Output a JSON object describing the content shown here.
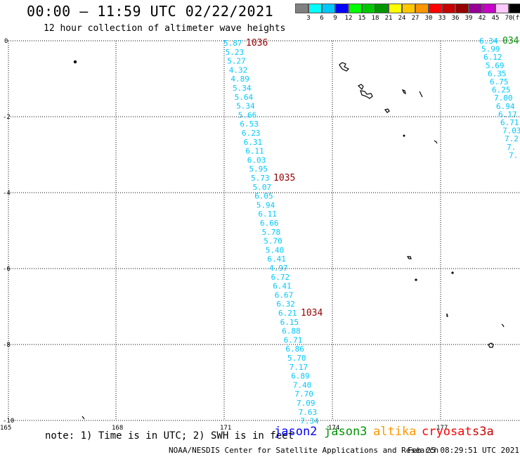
{
  "header": {
    "title": "00:00 – 11:59 UTC 02/22/2021",
    "subtitle": "12 hour collection of altimeter wave heights"
  },
  "legend": {
    "unit": "(ft)",
    "colors": [
      "#808080",
      "#00ffff",
      "#00c8ff",
      "#0000ff",
      "#00ff00",
      "#00c800",
      "#009600",
      "#ffff00",
      "#ffc800",
      "#ff9600",
      "#ff0000",
      "#c80000",
      "#960000",
      "#960096",
      "#c800c8",
      "#ffc8ff",
      "#000000"
    ],
    "labels": [
      "3",
      "6",
      "9",
      "12",
      "15",
      "18",
      "21",
      "24",
      "27",
      "30",
      "33",
      "36",
      "39",
      "42",
      "45",
      "70"
    ]
  },
  "map": {
    "x_ticks": [
      "165",
      "168",
      "171",
      "174",
      "177"
    ],
    "y_ticks": [
      "0",
      "-2",
      "-4",
      "-6",
      "-8",
      "-10"
    ],
    "track1": {
      "swh_ft": [
        "5.87",
        "5.23",
        "5.27",
        "4.32",
        "4.89",
        "5.34",
        "5.64",
        "5.34",
        "5.66",
        "6.53",
        "6.23",
        "6.31",
        "6.11",
        "6.03",
        "5.95",
        "5.73",
        "5.07",
        "6.05",
        "5.94",
        "6.11",
        "6.66",
        "5.78",
        "5.70",
        "5.40",
        "6.41",
        "4.97",
        "6.72",
        "6.41",
        "6.67",
        "6.32",
        "6.21",
        "6.15",
        "6.88",
        "6.71",
        "6.86",
        "5.70",
        "7.17",
        "6.89",
        "7.40",
        "7.70",
        "7.09",
        "7.63",
        "7.34"
      ],
      "time_labels": [
        {
          "text": "1036",
          "at_index": 0
        },
        {
          "text": "1035",
          "at_index": 15
        },
        {
          "text": "1034",
          "at_index": 30
        }
      ],
      "color": "#00c8ff",
      "time_color": "#960000"
    },
    "track2": {
      "swh_ft": [
        "6.34",
        "5.99",
        "6.12",
        "5.69",
        "6.35",
        "6.75",
        "6.25",
        "7.00",
        "6.94",
        "6.17",
        "6.71",
        "7.03",
        "7.2",
        "7.",
        "7."
      ],
      "time_label": {
        "text": "034",
        "at_index": 0
      },
      "color": "#00c8ff",
      "time_color": "#009600"
    }
  },
  "footer": {
    "note": "note: 1) Time is in UTC; 2) SWH is in feet",
    "satellites": [
      {
        "name": "jason2",
        "color": "#0000ff"
      },
      {
        "name": "jason3",
        "color": "#009600"
      },
      {
        "name": "altika",
        "color": "#ff9600"
      },
      {
        "name": "cryosat",
        "color": "#ff0000"
      },
      {
        "name": "s3a",
        "color": "#c80000"
      }
    ],
    "credit": "NOAA/NESDIS Center for Satellite Applications and Research",
    "generated": "Feb 25 08:29:51 UTC 2021"
  }
}
